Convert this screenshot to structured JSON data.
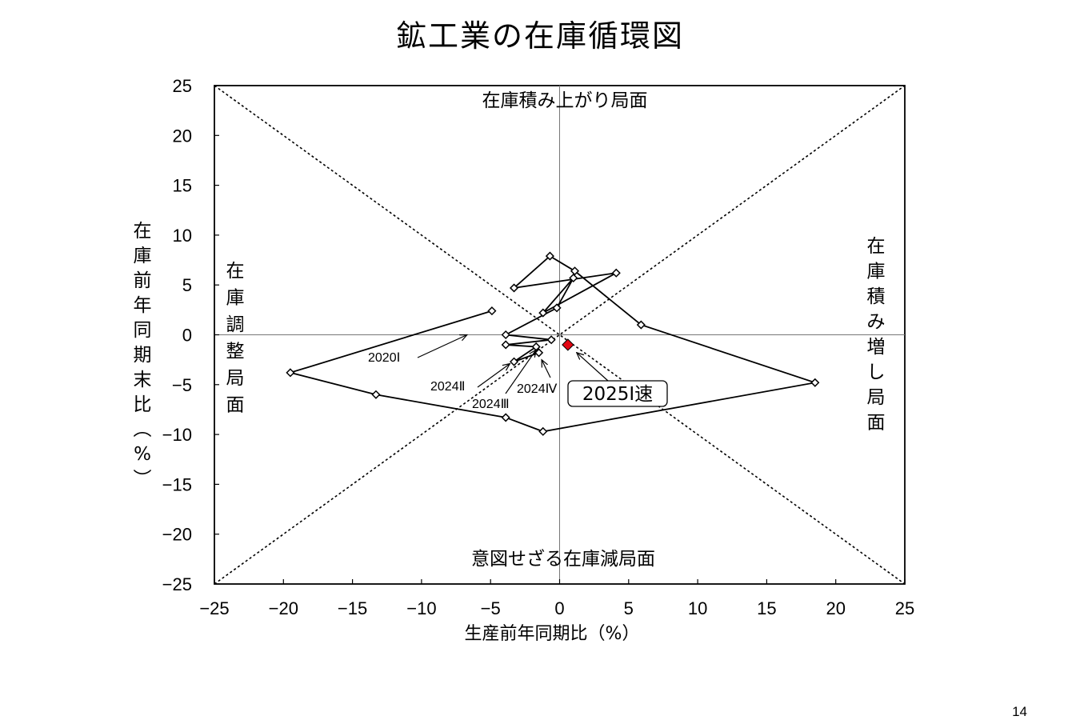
{
  "page": {
    "page_number": "14"
  },
  "chart_data": {
    "type": "scatter",
    "title": "鉱工業の在庫循環図",
    "xlabel": "生産前年同期比（%）",
    "ylabel": "在庫前年同期末比（%）",
    "xlim": [
      -25,
      25
    ],
    "ylim": [
      -25,
      25
    ],
    "xticks": [
      -25,
      -20,
      -15,
      -10,
      -5,
      0,
      5,
      10,
      15,
      20,
      25
    ],
    "yticks": [
      -25,
      -20,
      -15,
      -10,
      -5,
      0,
      5,
      10,
      15,
      20,
      25
    ],
    "x_tick_labels": [
      "−25",
      "−20",
      "−15",
      "−10",
      "−5",
      "0",
      "5",
      "10",
      "15",
      "20",
      "25"
    ],
    "y_tick_labels": [
      "−25",
      "−20",
      "−15",
      "−10",
      "−5",
      "0",
      "5",
      "10",
      "15",
      "20",
      "25"
    ],
    "grid": false,
    "reference_lines": [
      "y = x (dotted)",
      "y = -x (dotted)",
      "x = 0",
      "y = 0"
    ],
    "quadrant_labels": {
      "top": "在庫積み上がり局面",
      "bottom": "意図せざる在庫減局面",
      "left": "在庫調整局面",
      "right": "在庫積み増し局面"
    },
    "series": [
      {
        "points": [
          [
            -4.9,
            2.4
          ],
          [
            -19.5,
            -3.8
          ],
          [
            -13.3,
            -6.0
          ],
          [
            -3.9,
            -8.3
          ],
          [
            -1.2,
            -9.7
          ],
          [
            18.5,
            -4.8
          ],
          [
            5.9,
            1.0
          ],
          [
            1.1,
            6.4
          ],
          [
            -0.7,
            7.9
          ],
          [
            -3.3,
            4.7
          ],
          [
            4.1,
            6.2
          ],
          [
            -1.2,
            2.2
          ],
          [
            1.0,
            5.7
          ],
          [
            -0.2,
            2.7
          ],
          [
            -3.9,
            0.0
          ],
          [
            -0.6,
            -0.5
          ],
          [
            -3.9,
            -1.0
          ],
          [
            -1.7,
            -1.2
          ],
          [
            -3.3,
            -2.7
          ],
          [
            -1.5,
            -1.8
          ]
        ],
        "marker": "open-diamond",
        "color": "#000000"
      },
      {
        "points": [
          [
            0.6,
            -1.0
          ]
        ],
        "marker": "filled-diamond",
        "color": "#e30613"
      }
    ],
    "annotations": [
      {
        "text": "2020Ⅰ",
        "target": [
          -6.7,
          0.0
        ]
      },
      {
        "text": "2024Ⅱ",
        "target": [
          -3.6,
          -2.9
        ]
      },
      {
        "text": "2024Ⅲ",
        "target": [
          -1.7,
          -1.5
        ]
      },
      {
        "text": "2024Ⅳ",
        "target": [
          -1.3,
          -2.5
        ]
      },
      {
        "text": "2025Ⅰ速",
        "target": [
          1.0,
          -1.3
        ],
        "boxed": true
      }
    ]
  }
}
